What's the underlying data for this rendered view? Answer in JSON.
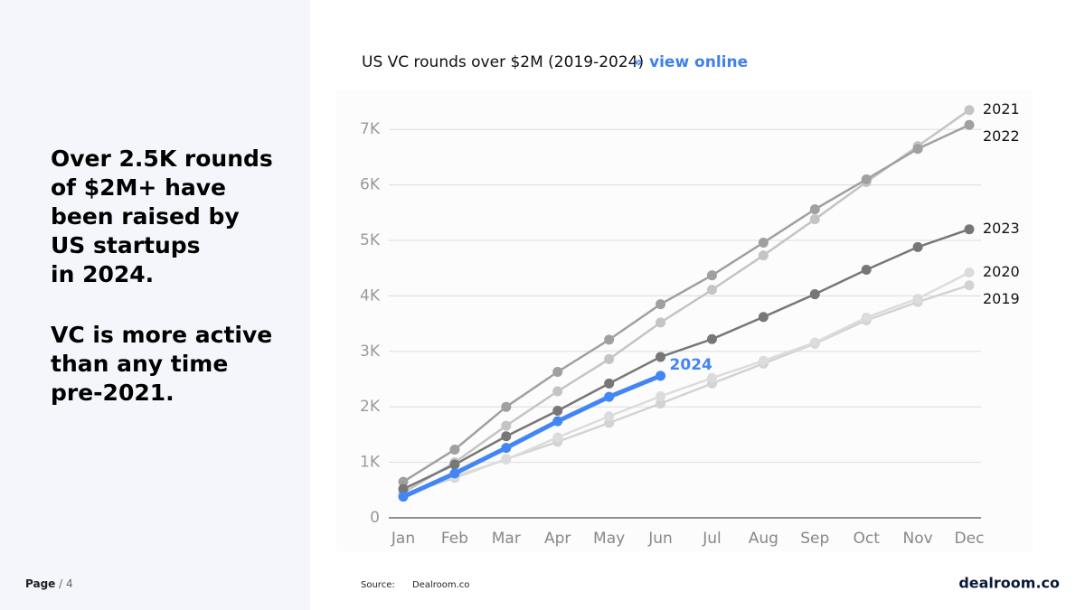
{
  "headline": [
    "Over 2.5K rounds",
    "of $2M+ have",
    "been raised by",
    "US startups",
    "in 2024."
  ],
  "subhead": [
    "VC is more active",
    "than any time",
    "pre-2021."
  ],
  "footer": {
    "page_label": "Page",
    "page_number": "/ 4",
    "source_label": "Source:",
    "source": "Dealroom.co",
    "logo": "dealroom.co"
  },
  "chart_data": {
    "type": "line",
    "title": "US VC rounds over $2M (2019-2024)",
    "link_prefix": "»",
    "link": "view online",
    "categories": [
      "Jan",
      "Feb",
      "Mar",
      "Apr",
      "May",
      "Jun",
      "Jul",
      "Aug",
      "Sep",
      "Oct",
      "Nov",
      "Dec"
    ],
    "ylim": [
      0,
      7500
    ],
    "yticks": [
      0,
      {
        "value": 1000,
        "label": "1K"
      },
      {
        "value": 2000,
        "label": "2K"
      },
      {
        "value": 3000,
        "label": "3K"
      },
      {
        "value": 4000,
        "label": "4K"
      },
      {
        "value": 5000,
        "label": "5K"
      },
      {
        "value": 6000,
        "label": "6K"
      },
      {
        "value": 7000,
        "label": "7K"
      }
    ],
    "grid": true,
    "series": [
      {
        "name": "2019",
        "color": "#d3d3d3",
        "values": [
          420,
          720,
          1060,
          1370,
          1710,
          2060,
          2420,
          2780,
          3140,
          3560,
          3890,
          4190
        ]
      },
      {
        "name": "2020",
        "color": "#dcdcdc",
        "values": [
          400,
          750,
          1050,
          1450,
          1830,
          2190,
          2520,
          2830,
          3160,
          3610,
          3950,
          4420
        ]
      },
      {
        "name": "2021",
        "color": "#c4c4c4",
        "values": [
          450,
          1000,
          1660,
          2280,
          2860,
          3520,
          4110,
          4730,
          5380,
          6050,
          6700,
          7350
        ]
      },
      {
        "name": "2022",
        "color": "#a0a0a0",
        "values": [
          650,
          1230,
          2000,
          2630,
          3210,
          3850,
          4370,
          4960,
          5560,
          6100,
          6650,
          7080
        ]
      },
      {
        "name": "2023",
        "color": "#777777",
        "values": [
          520,
          960,
          1470,
          1930,
          2420,
          2900,
          3220,
          3620,
          4030,
          4470,
          4880,
          5200
        ]
      },
      {
        "name": "2024",
        "color": "#4285f4",
        "values": [
          380,
          800,
          1260,
          1740,
          2180,
          2560,
          null,
          null,
          null,
          null,
          null,
          null
        ]
      }
    ]
  }
}
